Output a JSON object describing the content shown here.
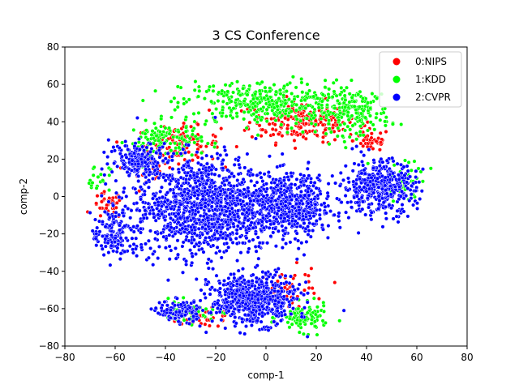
{
  "chart_data": {
    "type": "scatter",
    "title": "3 CS Conference",
    "xlabel": "comp-1",
    "ylabel": "comp-2",
    "xlim": [
      -80,
      80
    ],
    "ylim": [
      -80,
      80
    ],
    "xticks": [
      -80,
      -60,
      -40,
      -20,
      0,
      20,
      40,
      60,
      80
    ],
    "yticks": [
      -80,
      -60,
      -40,
      -20,
      0,
      20,
      40,
      60,
      80
    ],
    "xtick_labels": [
      "−80",
      "−60",
      "−40",
      "−20",
      "0",
      "20",
      "40",
      "60",
      "80"
    ],
    "ytick_labels": [
      "−80",
      "−60",
      "−40",
      "−20",
      "0",
      "20",
      "40",
      "60",
      "80"
    ],
    "grid": false,
    "legend_position": "top-right",
    "series": [
      {
        "name": "0:NIPS",
        "color": "#ff0000",
        "clusters": [
          {
            "center": [
              15,
              40
            ],
            "spread": [
              18,
              9
            ],
            "count": 220
          },
          {
            "center": [
              -35,
              28
            ],
            "spread": [
              14,
              8
            ],
            "count": 120
          },
          {
            "center": [
              42,
              30
            ],
            "spread": [
              6,
              5
            ],
            "count": 50
          },
          {
            "center": [
              -63,
              -5
            ],
            "spread": [
              5,
              6
            ],
            "count": 40
          },
          {
            "center": [
              10,
              -50
            ],
            "spread": [
              12,
              10
            ],
            "count": 50
          },
          {
            "center": [
              -25,
              -65
            ],
            "spread": [
              10,
              4
            ],
            "count": 35
          },
          {
            "center": [
              -48,
              15
            ],
            "spread": [
              7,
              5
            ],
            "count": 30
          }
        ]
      },
      {
        "name": "1:KDD",
        "color": "#00ff00",
        "clusters": [
          {
            "center": [
              0,
              50
            ],
            "spread": [
              28,
              10
            ],
            "count": 380
          },
          {
            "center": [
              35,
              45
            ],
            "spread": [
              12,
              10
            ],
            "count": 180
          },
          {
            "center": [
              -40,
              30
            ],
            "spread": [
              12,
              8
            ],
            "count": 120
          },
          {
            "center": [
              15,
              -65
            ],
            "spread": [
              8,
              6
            ],
            "count": 110
          },
          {
            "center": [
              -30,
              -62
            ],
            "spread": [
              10,
              5
            ],
            "count": 50
          },
          {
            "center": [
              55,
              10
            ],
            "spread": [
              8,
              10
            ],
            "count": 40
          },
          {
            "center": [
              -68,
              10
            ],
            "spread": [
              5,
              6
            ],
            "count": 25
          }
        ]
      },
      {
        "name": "2:CVPR",
        "color": "#0000ff",
        "clusters": [
          {
            "center": [
              -25,
              -5
            ],
            "spread": [
              22,
              22
            ],
            "count": 1200
          },
          {
            "center": [
              10,
              -5
            ],
            "spread": [
              14,
              14
            ],
            "count": 550
          },
          {
            "center": [
              -5,
              -55
            ],
            "spread": [
              14,
              11
            ],
            "count": 600
          },
          {
            "center": [
              45,
              5
            ],
            "spread": [
              12,
              12
            ],
            "count": 420
          },
          {
            "center": [
              -50,
              20
            ],
            "spread": [
              10,
              8
            ],
            "count": 180
          },
          {
            "center": [
              -60,
              -20
            ],
            "spread": [
              8,
              12
            ],
            "count": 160
          },
          {
            "center": [
              -35,
              -62
            ],
            "spread": [
              8,
              5
            ],
            "count": 140
          }
        ]
      }
    ]
  }
}
